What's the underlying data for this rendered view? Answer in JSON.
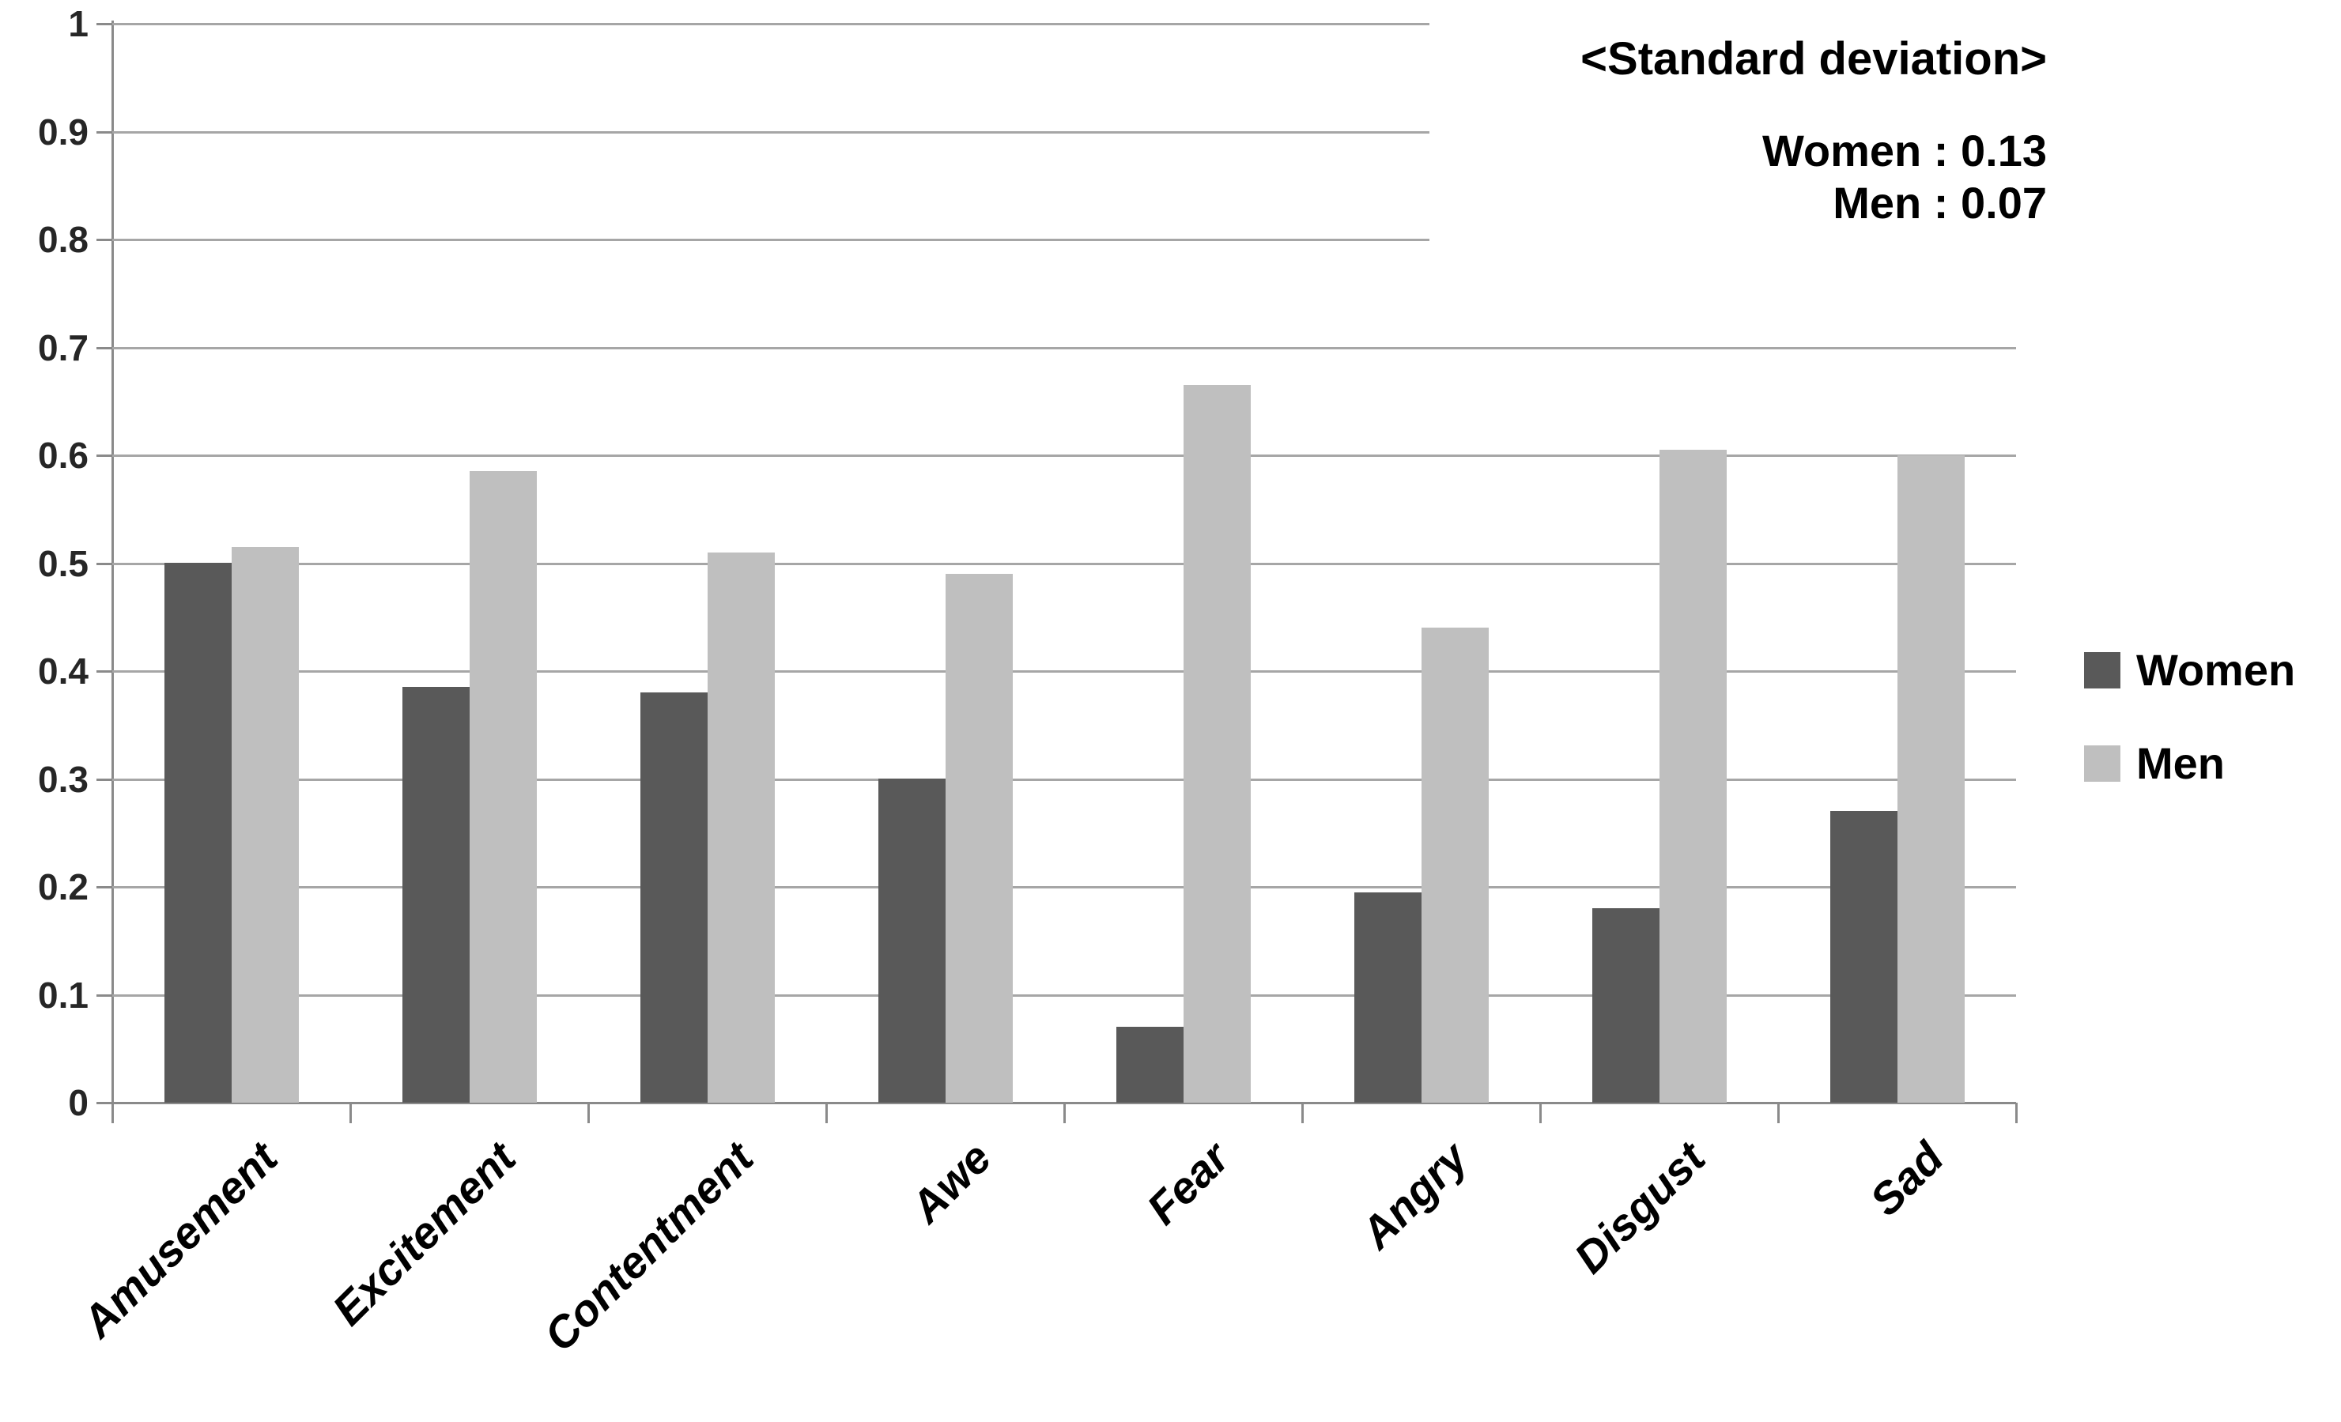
{
  "chart_data": {
    "type": "bar",
    "categories": [
      "Amusement",
      "Excitement",
      "Contentment",
      "Awe",
      "Fear",
      "Angry",
      "Disgust",
      "Sad"
    ],
    "series": [
      {
        "name": "Women",
        "color": "#595959",
        "values": [
          0.5,
          0.385,
          0.38,
          0.3,
          0.07,
          0.195,
          0.18,
          0.27
        ]
      },
      {
        "name": "Men",
        "color": "#bfbfbf",
        "values": [
          0.515,
          0.585,
          0.51,
          0.49,
          0.665,
          0.44,
          0.605,
          0.6
        ]
      }
    ],
    "title": "",
    "xlabel": "",
    "ylabel": "",
    "ylim": [
      0,
      1
    ],
    "grid": true,
    "legend_position": "right",
    "yticks": [
      {
        "v": 1.0,
        "label": "1"
      },
      {
        "v": 0.9,
        "label": "0.9"
      },
      {
        "v": 0.8,
        "label": "0.8"
      },
      {
        "v": 0.7,
        "label": "0.7"
      },
      {
        "v": 0.6,
        "label": "0.6"
      },
      {
        "v": 0.5,
        "label": "0.5"
      },
      {
        "v": 0.4,
        "label": "0.4"
      },
      {
        "v": 0.3,
        "label": "0.3"
      },
      {
        "v": 0.2,
        "label": "0.2"
      },
      {
        "v": 0.1,
        "label": "0.1"
      },
      {
        "v": 0.0,
        "label": "0"
      }
    ]
  },
  "annotation": {
    "title": "<Standard deviation>",
    "line1": "Women : 0.13",
    "line2": "Men : 0.07"
  },
  "legend": {
    "items": [
      {
        "label": "Women",
        "color": "#595959"
      },
      {
        "label": "Men",
        "color": "#bfbfbf"
      }
    ]
  },
  "colors": {
    "gridline": "#a6a6a6",
    "axis": "#8a8a8a",
    "text": "#000000"
  }
}
